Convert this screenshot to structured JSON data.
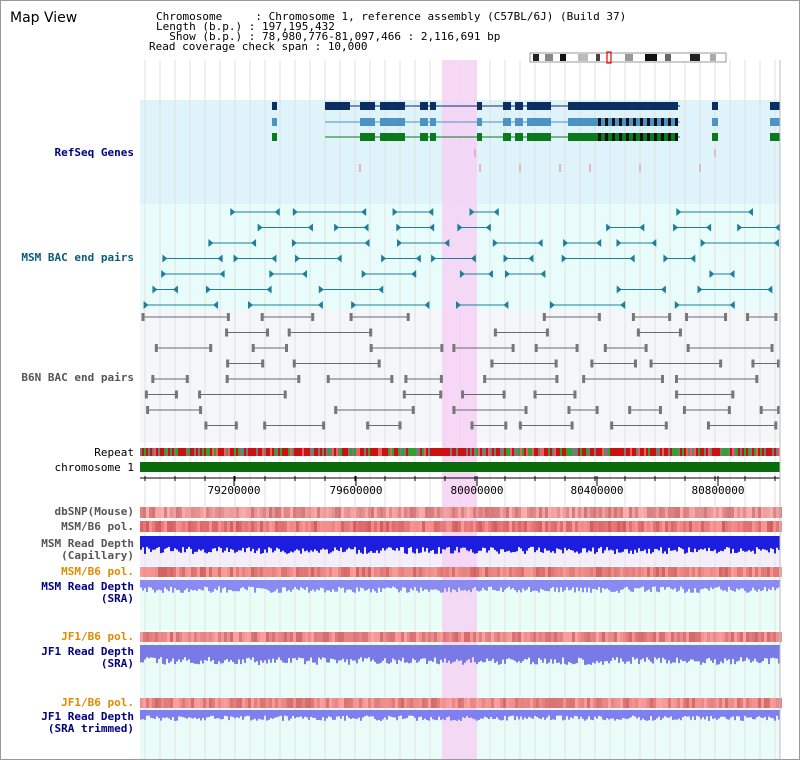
{
  "header": {
    "title": "Map View",
    "chromosome_key": "Chromosome     : ",
    "chromosome_value": "Chromosome 1, reference assembly (C57BL/6J) (Build 37)",
    "length_key": "Length (b.p.) : ",
    "length_value": "197,195,432",
    "show_key": "  Show (b.p.) : ",
    "show_value": "78,980,776-81,097,466 : 2,116,691 bp",
    "coverage_key": "Read coverage check span : ",
    "coverage_value": "10,000"
  },
  "tracks": {
    "refseq": "RefSeq Genes",
    "msm_bac": "MSM BAC end pairs",
    "b6n_bac": "B6N BAC end pairs",
    "repeat": "Repeat",
    "chromosome": "chromosome 1",
    "dbsnp": "dbSNP(Mouse)",
    "msm_b6_pol": "MSM/B6 pol.",
    "msm_depth_cap_1": "MSM Read Depth",
    "msm_depth_cap_2": "(Capillary)",
    "msm_b6_pol_2": "MSM/B6 pol.",
    "msm_depth_sra_1": "MSM Read Depth",
    "msm_depth_sra_2": "(SRA)",
    "jf1_pol": "JF1/B6 pol.",
    "jf1_depth_1": "JF1 Read Depth",
    "jf1_depth_2": "(SRA)",
    "jf1_pol_2": "JF1/B6 pol.",
    "jf1_trim_1": "JF1 Read Depth",
    "jf1_trim_2": "(SRA trimmed)"
  },
  "axis": {
    "ticks": [
      "79200000",
      "79600000",
      "80000000",
      "80400000",
      "80800000"
    ]
  },
  "colors": {
    "refseq_bg": "#dff3fb",
    "msm_bg": "#e8fdfb",
    "b6n_bg": "#f4f6fa",
    "lower_bg": "#eafef8",
    "highlight": "#f6d2f4",
    "gene_dark": "#0b2e63",
    "gene_mid": "#4a93c4",
    "gene_green": "#0b7a1c",
    "msm_line": "#1d7f99",
    "b6n_line": "#6a6a6a",
    "chrom_green": "#0a6b0a",
    "label_blue": "#000080",
    "label_orange": "#e08a00"
  }
}
